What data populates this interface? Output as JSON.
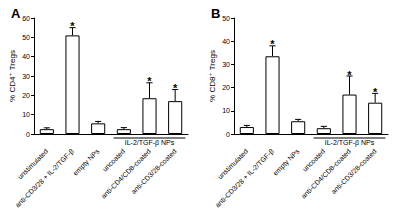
{
  "chart_data": [
    {
      "type": "bar",
      "title": "A",
      "y_label": "% CD4⁺ Tregs",
      "categories": [
        "unstimulated",
        "anti-CD3/28 + IL-2/TGF-β",
        "empty NPs",
        "uncoated",
        "anti-CD4/CD8-coated",
        "anti-CD3/28-coated"
      ],
      "values": [
        2.5,
        51,
        5.5,
        2.5,
        18.5,
        17
      ],
      "errors": [
        0.7,
        4,
        1,
        0.8,
        8,
        6
      ],
      "color": "#ffffff",
      "ylim": [
        0,
        60
      ],
      "yticks": [
        0,
        10,
        20,
        30,
        40,
        50,
        60
      ],
      "grid": false,
      "annotations": [
        {
          "text": "*",
          "at": "anti-CD3/28 + IL-2/TGF-β"
        },
        {
          "text": "*",
          "at": "anti-CD4/CD8-coated"
        },
        {
          "text": "*",
          "at": "anti-CD3/28-coated"
        },
        {
          "text": "IL-2/TGF-β NPs",
          "span": [
            "uncoated",
            "anti-CD3/28-coated"
          ]
        }
      ]
    },
    {
      "type": "bar",
      "title": "B",
      "y_label": "% CD8⁺ Tregs",
      "categories": [
        "unstimulated",
        "anti-CD3/28 + IL-2/TGF-β",
        "empty NPs",
        "uncoated",
        "anti-CD4/CD8-coated",
        "anti-CD3/28-coated"
      ],
      "values": [
        3,
        33.5,
        5.5,
        2.5,
        17,
        13.5
      ],
      "errors": [
        0.7,
        4.5,
        0.8,
        0.8,
        8,
        4
      ],
      "color": "#ffffff",
      "ylim": [
        0,
        50
      ],
      "yticks": [
        0,
        10,
        20,
        30,
        40,
        50
      ],
      "grid": false,
      "annotations": [
        {
          "text": "*",
          "at": "anti-CD3/28 + IL-2/TGF-β"
        },
        {
          "text": "*",
          "at": "anti-CD4/CD8-coated"
        },
        {
          "text": "*",
          "at": "anti-CD3/28-coated"
        },
        {
          "text": "IL-2/TGF-β NPs",
          "span": [
            "uncoated",
            "anti-CD3/28-coated"
          ]
        }
      ]
    }
  ]
}
